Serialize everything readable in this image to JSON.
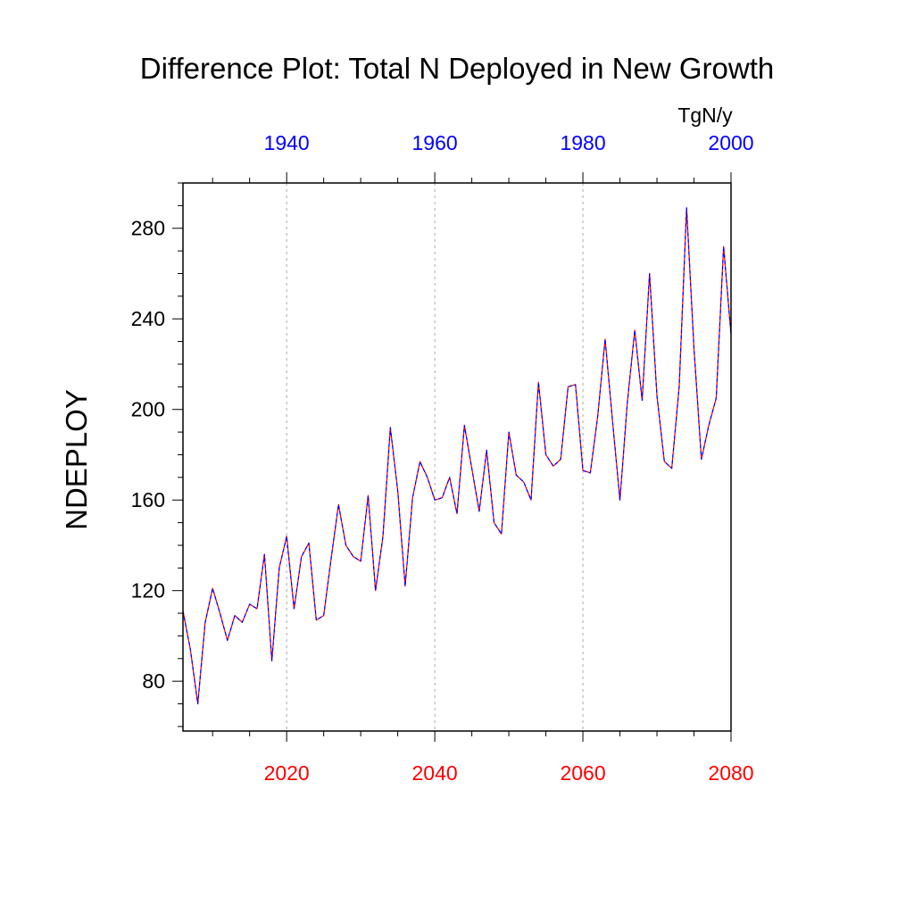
{
  "chart_data": {
    "type": "line",
    "title": "Difference Plot: Total N Deployed in New Growth",
    "units_label": "TgN/y",
    "ylabel": "NDEPLOY",
    "xlabel": "",
    "ylim": [
      58,
      300
    ],
    "y_ticks": [
      80,
      120,
      160,
      200,
      240,
      280
    ],
    "bottom_axis": {
      "color": "#ff0000",
      "range": [
        2006,
        2080
      ],
      "ticks": [
        2020,
        2040,
        2060,
        2080
      ]
    },
    "top_axis": {
      "color": "#0000ff",
      "range": [
        1926,
        2000
      ],
      "ticks": [
        1940,
        1960,
        1980,
        2000
      ]
    },
    "grid": {
      "vertical_dashed_at": [
        2020,
        2040,
        2060
      ]
    },
    "series": [
      {
        "name": "bottom-axis series",
        "axis": "bottom",
        "color": "#ff0000",
        "style": "solid"
      },
      {
        "name": "top-axis series",
        "axis": "top",
        "color": "#0000ff",
        "style": "dashed"
      }
    ],
    "x": [
      2006,
      2007,
      2008,
      2009,
      2010,
      2011,
      2012,
      2013,
      2014,
      2015,
      2016,
      2017,
      2018,
      2019,
      2020,
      2021,
      2022,
      2023,
      2024,
      2025,
      2026,
      2027,
      2028,
      2029,
      2030,
      2031,
      2032,
      2033,
      2034,
      2035,
      2036,
      2037,
      2038,
      2039,
      2040,
      2041,
      2042,
      2043,
      2044,
      2045,
      2046,
      2047,
      2048,
      2049,
      2050,
      2051,
      2052,
      2053,
      2054,
      2055,
      2056,
      2057,
      2058,
      2059,
      2060,
      2061,
      2062,
      2063,
      2064,
      2065,
      2066,
      2067,
      2068,
      2069,
      2070,
      2071,
      2072,
      2073,
      2074,
      2075,
      2076,
      2077,
      2078,
      2079,
      2080
    ],
    "values": [
      111,
      94,
      70,
      106,
      121,
      110,
      98,
      109,
      106,
      114,
      112,
      136,
      89,
      130,
      144,
      112,
      135,
      141,
      107,
      109,
      134,
      158,
      140,
      135,
      133,
      162,
      120,
      144,
      192,
      164,
      122,
      161,
      177,
      170,
      160,
      161,
      170,
      154,
      193,
      174,
      155,
      182,
      150,
      145,
      190,
      171,
      168,
      160,
      212,
      180,
      175,
      178,
      210,
      211,
      173,
      172,
      197,
      231,
      195,
      160,
      203,
      235,
      204,
      260,
      206,
      177,
      174,
      210,
      289,
      227,
      178,
      193,
      205,
      272,
      233
    ]
  }
}
